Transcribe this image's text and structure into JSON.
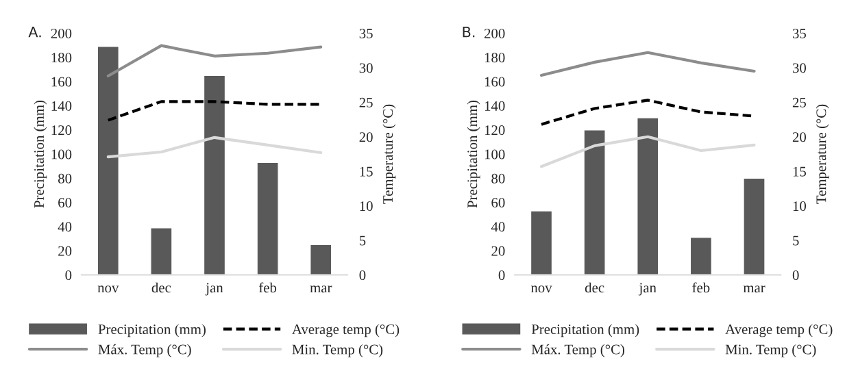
{
  "chart_data": [
    {
      "type": "bar",
      "title": "A.",
      "categories": [
        "nov",
        "dec",
        "jan",
        "feb",
        "mar"
      ],
      "ylabel": "Precipitation (mm)",
      "y2label": "Temperature (°C)",
      "ylim": [
        0,
        200
      ],
      "yticks": [
        0,
        20,
        40,
        60,
        80,
        100,
        120,
        140,
        160,
        180,
        200
      ],
      "y2lim": [
        0,
        35
      ],
      "y2ticks": [
        0,
        5,
        10,
        15,
        20,
        25,
        30,
        35
      ],
      "grid": false,
      "legend": "bottom",
      "series": [
        {
          "name": "Precipitation (mm)",
          "color": "#595959",
          "values": [
            189,
            39,
            165,
            93,
            25
          ]
        },
        {
          "name": "Average temp (°C)",
          "type": "line",
          "axis": "y2",
          "line_style": "dashed",
          "color": "#000000",
          "values": [
            22.4,
            25.1,
            25.1,
            24.7,
            24.7
          ]
        },
        {
          "name": "Máx. Temp (°C)",
          "type": "line",
          "axis": "y2",
          "line_style": "solid",
          "color": "#8c8c8c",
          "values": [
            28.8,
            33.2,
            31.7,
            32.1,
            33.0
          ]
        },
        {
          "name": "Min. Temp (°C)",
          "type": "line",
          "axis": "y2",
          "line_style": "solid",
          "color": "#d9d9d9",
          "values": [
            17.1,
            17.8,
            19.9,
            18.8,
            17.7
          ]
        }
      ]
    },
    {
      "type": "bar",
      "title": "B.",
      "categories": [
        "nov",
        "dec",
        "jan",
        "feb",
        "mar"
      ],
      "ylabel": "Precipitation (mm)",
      "y2label": "Temperature (°C)",
      "ylim": [
        0,
        200
      ],
      "yticks": [
        0,
        20,
        40,
        60,
        80,
        100,
        120,
        140,
        160,
        180,
        200
      ],
      "y2lim": [
        0,
        35
      ],
      "y2ticks": [
        0,
        5,
        10,
        15,
        20,
        25,
        30,
        35
      ],
      "grid": false,
      "legend": "bottom",
      "series": [
        {
          "name": "Precipitation (mm)",
          "color": "#595959",
          "values": [
            53,
            120,
            130,
            31,
            80
          ]
        },
        {
          "name": "Average temp (°C)",
          "type": "line",
          "axis": "y2",
          "line_style": "dashed",
          "color": "#000000",
          "values": [
            21.8,
            24.1,
            25.3,
            23.6,
            23.0
          ]
        },
        {
          "name": "Máx. Temp (°C)",
          "type": "line",
          "axis": "y2",
          "line_style": "solid",
          "color": "#8c8c8c",
          "values": [
            28.9,
            30.8,
            32.2,
            30.7,
            29.5
          ]
        },
        {
          "name": "Min. Temp (°C)",
          "type": "line",
          "axis": "y2",
          "line_style": "solid",
          "color": "#d9d9d9",
          "values": [
            15.7,
            18.7,
            20.0,
            18.0,
            18.8
          ]
        }
      ]
    }
  ]
}
